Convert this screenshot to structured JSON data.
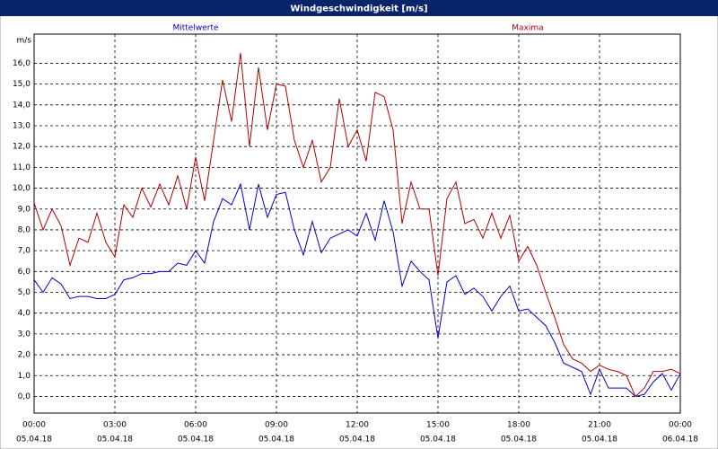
{
  "chart_data": {
    "type": "line",
    "title": "Windgeschwindigkeit [m/s]",
    "y_unit_label": "m/s",
    "x": [
      0,
      20,
      40,
      60,
      80,
      100,
      120,
      140,
      160,
      180,
      200,
      220,
      240,
      260,
      280,
      300,
      320,
      340,
      360,
      380,
      400,
      420,
      440,
      460,
      480,
      500,
      520,
      540,
      560,
      580,
      600,
      620,
      640,
      660,
      680,
      700,
      720,
      740,
      760,
      780,
      800,
      820,
      840,
      860,
      880,
      900,
      920,
      940,
      960,
      980,
      1000,
      1020,
      1040,
      1060,
      1080,
      1100,
      1120,
      1140,
      1160,
      1180,
      1200,
      1220,
      1240,
      1260,
      1280,
      1300,
      1320,
      1340,
      1360,
      1380,
      1400,
      1420,
      1440
    ],
    "series": [
      {
        "name": "Mittelwerte",
        "color": "#0000c8",
        "values": [
          5.6,
          5.0,
          5.7,
          5.4,
          4.7,
          4.8,
          4.8,
          4.7,
          4.7,
          4.9,
          5.6,
          5.7,
          5.9,
          5.9,
          6.0,
          6.0,
          6.4,
          6.3,
          7.0,
          6.4,
          8.4,
          9.5,
          9.2,
          10.2,
          8.0,
          10.2,
          8.6,
          9.7,
          9.8,
          8.0,
          6.8,
          8.4,
          6.9,
          7.6,
          7.8,
          8.0,
          7.7,
          8.8,
          7.5,
          9.4,
          7.9,
          5.3,
          6.5,
          6.0,
          5.6,
          2.8,
          5.5,
          5.8,
          4.9,
          5.2,
          4.8,
          4.1,
          4.8,
          5.3,
          4.1,
          4.2,
          3.8,
          3.4,
          2.6,
          1.6,
          1.4,
          1.2,
          0.1,
          1.3,
          0.4,
          0.4,
          0.4,
          0.0,
          0.1,
          0.7,
          1.1,
          0.3,
          1.1
        ]
      },
      {
        "name": "Maxima",
        "color": "#b40000",
        "values": [
          9.3,
          8.0,
          9.0,
          8.2,
          6.3,
          7.6,
          7.4,
          8.8,
          7.4,
          6.7,
          9.2,
          8.6,
          10.0,
          9.1,
          10.2,
          9.2,
          10.6,
          9.0,
          11.5,
          9.4,
          12.3,
          15.2,
          13.2,
          16.5,
          12.0,
          15.8,
          12.8,
          15.0,
          14.9,
          12.3,
          11.0,
          12.3,
          10.3,
          11.0,
          14.3,
          12.0,
          12.8,
          11.3,
          14.6,
          14.4,
          12.8,
          8.3,
          10.3,
          9.0,
          9.0,
          5.8,
          9.5,
          10.3,
          8.3,
          8.5,
          7.6,
          8.8,
          7.6,
          8.7,
          6.5,
          7.2,
          6.3,
          5.0,
          3.8,
          2.5,
          1.8,
          1.6,
          1.2,
          1.5,
          1.3,
          1.2,
          1.0,
          0.0,
          0.4,
          1.2,
          1.2,
          1.3,
          1.1
        ]
      }
    ],
    "xlim": [
      0,
      1440
    ],
    "xticks": [
      {
        "value": 0,
        "label": "00:00",
        "sublabel": "05.04.18"
      },
      {
        "value": 180,
        "label": "03:00",
        "sublabel": "05.04.18"
      },
      {
        "value": 360,
        "label": "06:00",
        "sublabel": "05.04.18"
      },
      {
        "value": 540,
        "label": "09:00",
        "sublabel": "05.04.18"
      },
      {
        "value": 720,
        "label": "12:00",
        "sublabel": "05.04.18"
      },
      {
        "value": 900,
        "label": "15:00",
        "sublabel": "05.04.18"
      },
      {
        "value": 1080,
        "label": "18:00",
        "sublabel": "05.04.18"
      },
      {
        "value": 1260,
        "label": "21:00",
        "sublabel": "05.04.18"
      },
      {
        "value": 1440,
        "label": "00:00",
        "sublabel": "06.04.18"
      }
    ],
    "ylim": [
      -0.8,
      17.4
    ],
    "yticks": [
      {
        "value": 0,
        "label": "0,0"
      },
      {
        "value": 1,
        "label": "1,0"
      },
      {
        "value": 2,
        "label": "2,0"
      },
      {
        "value": 3,
        "label": "3,0"
      },
      {
        "value": 4,
        "label": "4,0"
      },
      {
        "value": 5,
        "label": "5,0"
      },
      {
        "value": 6,
        "label": "6,0"
      },
      {
        "value": 7,
        "label": "7,0"
      },
      {
        "value": 8,
        "label": "8,0"
      },
      {
        "value": 9,
        "label": "9,0"
      },
      {
        "value": 10,
        "label": "10,0"
      },
      {
        "value": 11,
        "label": "11,0"
      },
      {
        "value": 12,
        "label": "12,0"
      },
      {
        "value": 13,
        "label": "13,0"
      },
      {
        "value": 14,
        "label": "14,0"
      },
      {
        "value": 15,
        "label": "15,0"
      },
      {
        "value": 16,
        "label": "16,0"
      }
    ],
    "grid": true
  }
}
